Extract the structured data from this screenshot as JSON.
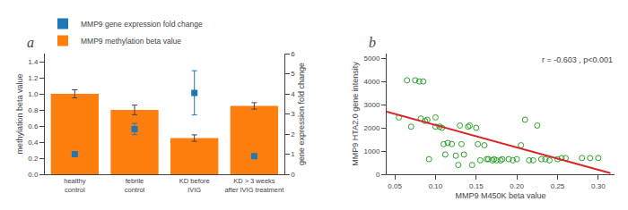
{
  "chart_data": [
    {
      "type": "bar",
      "title": "a",
      "categories": [
        "healthy\ncontrol",
        "febrile\ncontrol",
        "KD before\nIVIG",
        "KD > 3 weeks\nafter IVIG treatment"
      ],
      "series": [
        {
          "name": "MMP9 gene expression fold change",
          "type": "scatter",
          "marker": "square",
          "axis": "y2",
          "values": [
            1.0,
            2.25,
            4.05,
            0.9
          ],
          "errors": [
            0.0,
            0.28,
            1.1,
            0.0
          ]
        },
        {
          "name": "MMP9 methylation beta value",
          "type": "bar",
          "values": [
            1.0,
            0.8,
            0.45,
            0.85
          ],
          "errors": [
            0.05,
            0.06,
            0.04,
            0.04
          ]
        }
      ],
      "ylabel": "methylation beta value",
      "y2label": "gene expression fold change",
      "ylim": [
        0.0,
        1.5
      ],
      "yticks": [
        {
          "value": 0.0,
          "label": "0.0"
        },
        0.2,
        0.4,
        0.6,
        0.8,
        {
          "value": 1.0,
          "label": "1.0"
        },
        1.2,
        1.4
      ],
      "y2lim": [
        0.0,
        6.0
      ],
      "y2ticks": [
        0,
        1,
        2,
        3,
        4,
        5,
        6
      ],
      "legend": "upper left",
      "grid": false
    },
    {
      "type": "scatter",
      "title": "b",
      "series": [
        {
          "type": "scatter",
          "marker": "open-circle",
          "x": [
            0.055,
            0.065,
            0.07,
            0.075,
            0.08,
            0.082,
            0.085,
            0.087,
            0.09,
            0.092,
            0.1,
            0.1,
            0.105,
            0.108,
            0.11,
            0.112,
            0.115,
            0.12,
            0.125,
            0.128,
            0.13,
            0.132,
            0.135,
            0.14,
            0.142,
            0.145,
            0.15,
            0.152,
            0.155,
            0.16,
            0.163,
            0.165,
            0.17,
            0.172,
            0.175,
            0.18,
            0.182,
            0.19,
            0.195,
            0.2,
            0.205,
            0.21,
            0.215,
            0.22,
            0.225,
            0.23,
            0.235,
            0.24,
            0.25,
            0.255,
            0.26,
            0.28,
            0.29,
            0.3
          ],
          "values": [
            2450,
            4050,
            2050,
            4050,
            4000,
            2400,
            4000,
            2300,
            2350,
            650,
            2450,
            2050,
            2050,
            2000,
            1300,
            850,
            1350,
            1300,
            800,
            400,
            2100,
            1300,
            850,
            2050,
            2100,
            400,
            2000,
            1300,
            600,
            1250,
            650,
            650,
            600,
            650,
            600,
            600,
            650,
            650,
            600,
            650,
            1250,
            2350,
            600,
            600,
            2100,
            650,
            650,
            600,
            650,
            700,
            700,
            700,
            700,
            700
          ]
        },
        {
          "type": "line",
          "x": [
            0.04,
            0.315
          ],
          "values": [
            2700,
            50
          ]
        }
      ],
      "xlabel": "MMP9 M450K beta value",
      "ylabel": "MMP9 HTA2.0 gene intensity",
      "xlim": [
        0.04,
        0.32
      ],
      "xticks": [
        0.05,
        {
          "value": 0.1,
          "label": "0.10"
        },
        0.15,
        {
          "value": 0.2,
          "label": "0.20"
        },
        0.25,
        {
          "value": 0.3,
          "label": "0.30"
        }
      ],
      "ylim": [
        0,
        5200
      ],
      "yticks": [
        0,
        1000,
        2000,
        3000,
        4000,
        5000
      ],
      "annotation": "r = -0.603 , p<0.001",
      "grid": false
    }
  ]
}
